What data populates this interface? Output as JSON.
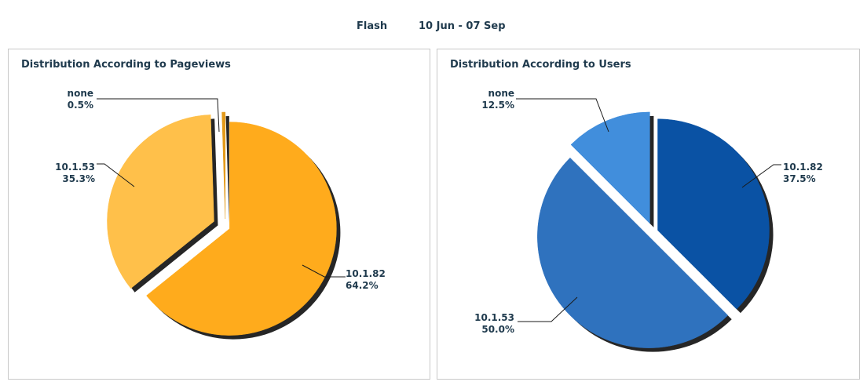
{
  "header": {
    "metric": "Flash",
    "date_range": "10 Jun - 07 Sep"
  },
  "chart_data": [
    {
      "type": "pie",
      "title": "Distribution According to Pageviews",
      "slices": [
        {
          "label": "10.1.82",
          "value": 64.2,
          "value_label": "64.2%",
          "color": "#ffab1c"
        },
        {
          "label": "10.1.53",
          "value": 35.3,
          "value_label": "35.3%",
          "color": "#ffc04a"
        },
        {
          "label": "none",
          "value": 0.5,
          "value_label": "0.5%",
          "color": "#e39a1a"
        }
      ]
    },
    {
      "type": "pie",
      "title": "Distribution According to Users",
      "slices": [
        {
          "label": "10.1.82",
          "value": 37.5,
          "value_label": "37.5%",
          "color": "#0a52a4"
        },
        {
          "label": "10.1.53",
          "value": 50.0,
          "value_label": "50.0%",
          "color": "#2f72be"
        },
        {
          "label": "none",
          "value": 12.5,
          "value_label": "12.5%",
          "color": "#418edc"
        }
      ]
    }
  ]
}
